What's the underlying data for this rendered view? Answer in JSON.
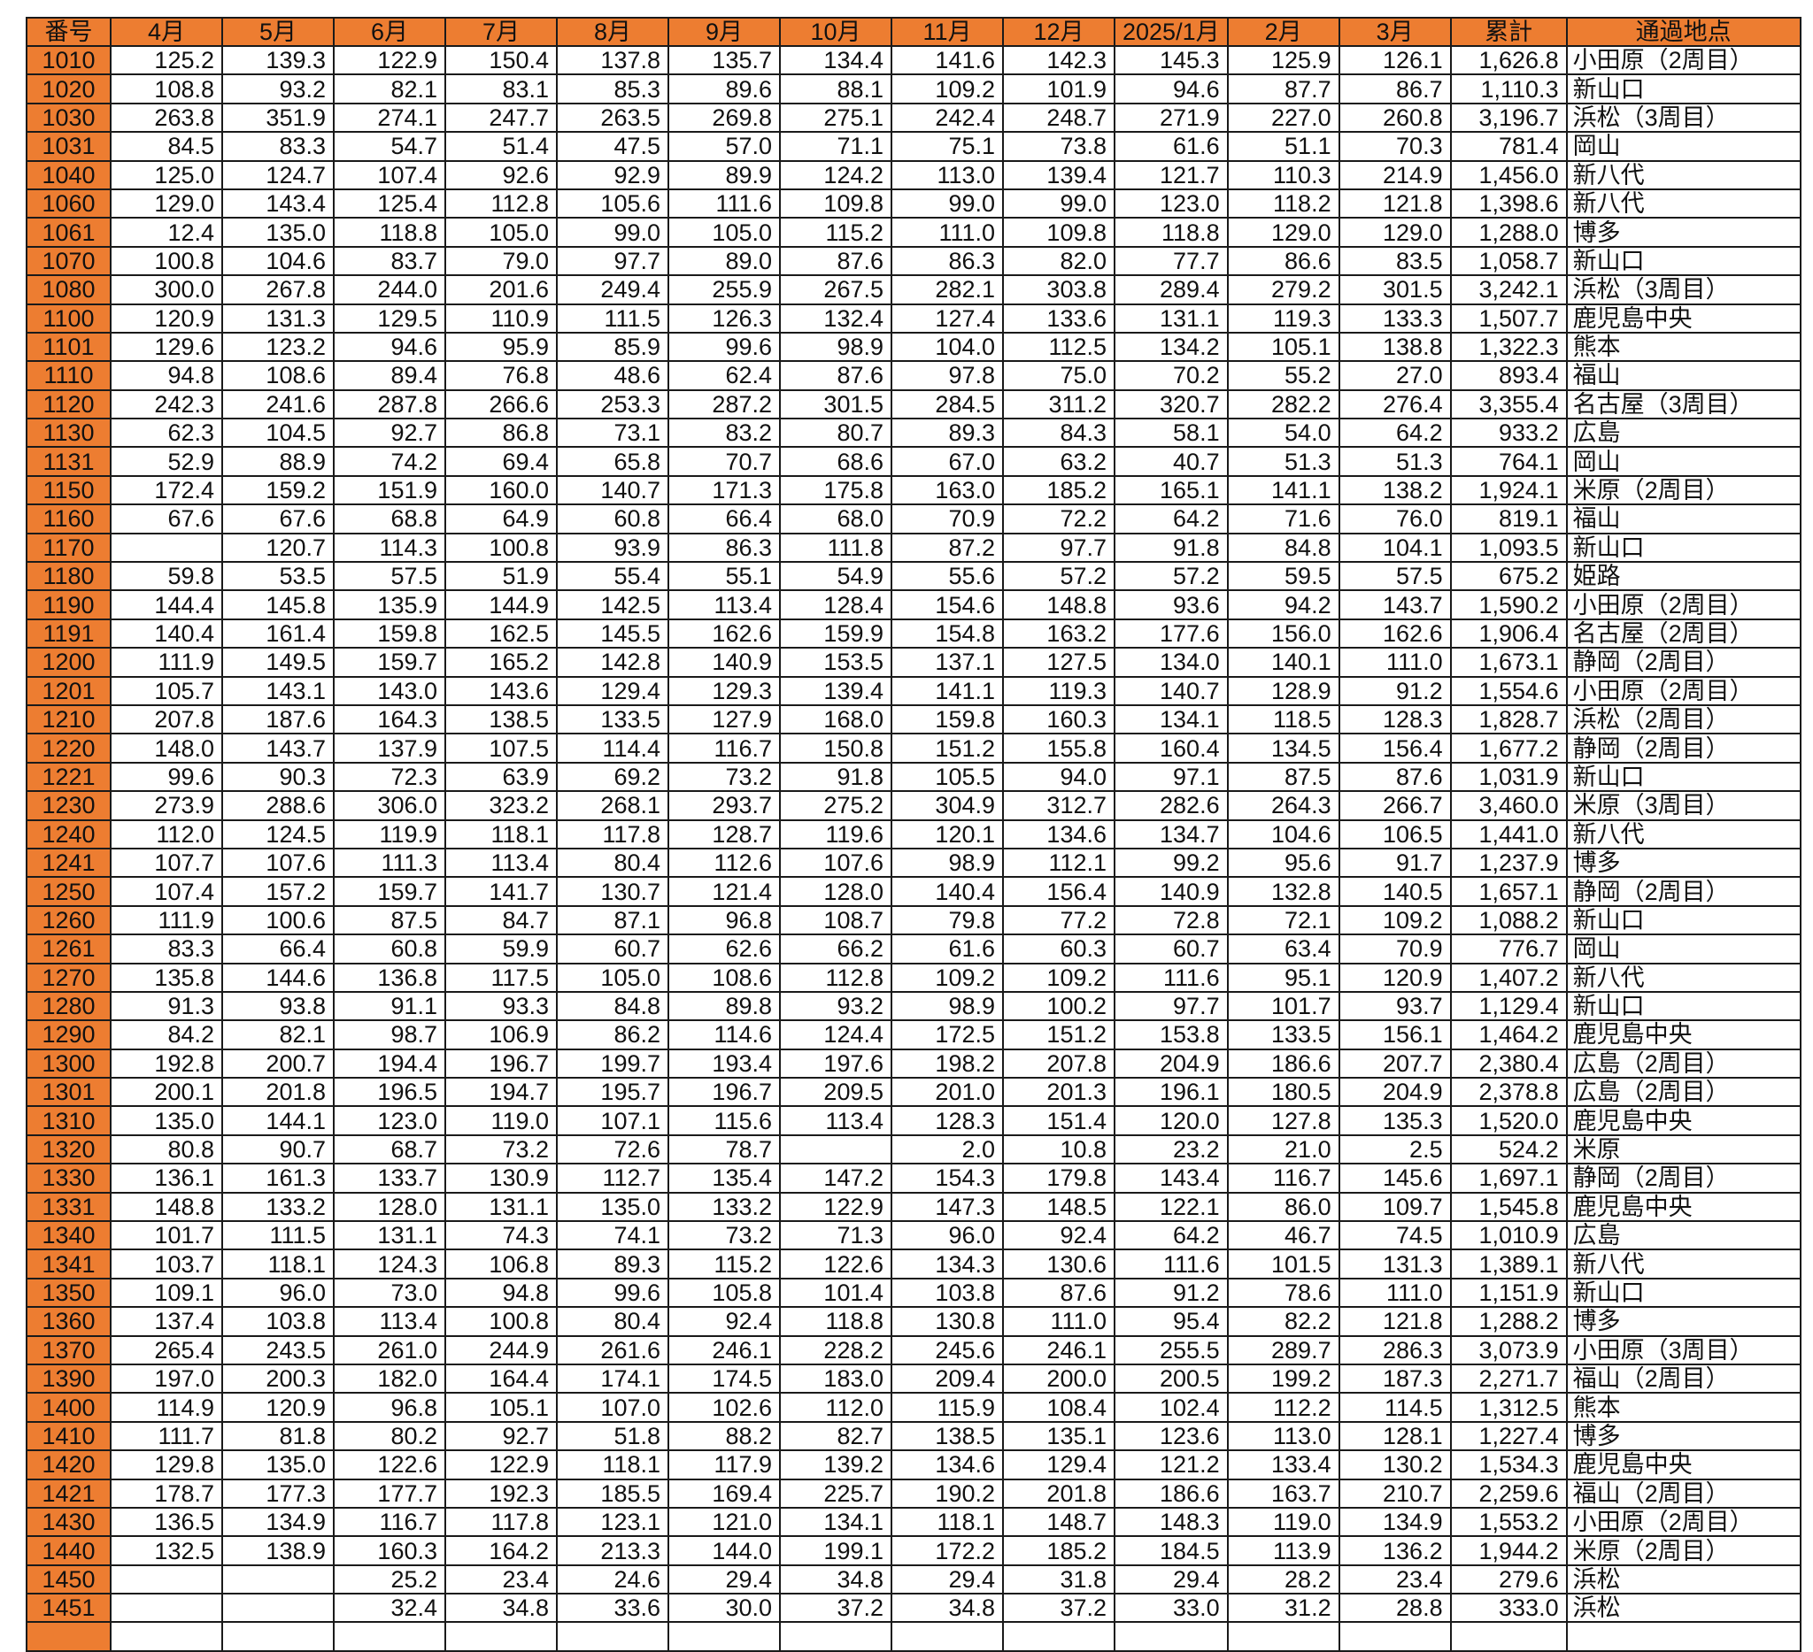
{
  "colors": {
    "header_bg": "#ED7D31",
    "id_bg": "#ED7D31",
    "border": "#1a1a1a"
  },
  "table": {
    "headers": [
      "番号",
      "4月",
      "5月",
      "6月",
      "7月",
      "8月",
      "9月",
      "10月",
      "11月",
      "12月",
      "2025/1月",
      "2月",
      "3月",
      "累計",
      "通過地点"
    ],
    "rows": [
      [
        "1010",
        "125.2",
        "139.3",
        "122.9",
        "150.4",
        "137.8",
        "135.7",
        "134.4",
        "141.6",
        "142.3",
        "145.3",
        "125.9",
        "126.1",
        "1,626.8",
        "小田原（2周目）"
      ],
      [
        "1020",
        "108.8",
        "93.2",
        "82.1",
        "83.1",
        "85.3",
        "89.6",
        "88.1",
        "109.2",
        "101.9",
        "94.6",
        "87.7",
        "86.7",
        "1,110.3",
        "新山口"
      ],
      [
        "1030",
        "263.8",
        "351.9",
        "274.1",
        "247.7",
        "263.5",
        "269.8",
        "275.1",
        "242.4",
        "248.7",
        "271.9",
        "227.0",
        "260.8",
        "3,196.7",
        "浜松（3周目）"
      ],
      [
        "1031",
        "84.5",
        "83.3",
        "54.7",
        "51.4",
        "47.5",
        "57.0",
        "71.1",
        "75.1",
        "73.8",
        "61.6",
        "51.1",
        "70.3",
        "781.4",
        "岡山"
      ],
      [
        "1040",
        "125.0",
        "124.7",
        "107.4",
        "92.6",
        "92.9",
        "89.9",
        "124.2",
        "113.0",
        "139.4",
        "121.7",
        "110.3",
        "214.9",
        "1,456.0",
        "新八代"
      ],
      [
        "1060",
        "129.0",
        "143.4",
        "125.4",
        "112.8",
        "105.6",
        "111.6",
        "109.8",
        "99.0",
        "99.0",
        "123.0",
        "118.2",
        "121.8",
        "1,398.6",
        "新八代"
      ],
      [
        "1061",
        "12.4",
        "135.0",
        "118.8",
        "105.0",
        "99.0",
        "105.0",
        "115.2",
        "111.0",
        "109.8",
        "118.8",
        "129.0",
        "129.0",
        "1,288.0",
        "博多"
      ],
      [
        "1070",
        "100.8",
        "104.6",
        "83.7",
        "79.0",
        "97.7",
        "89.0",
        "87.6",
        "86.3",
        "82.0",
        "77.7",
        "86.6",
        "83.5",
        "1,058.7",
        "新山口"
      ],
      [
        "1080",
        "300.0",
        "267.8",
        "244.0",
        "201.6",
        "249.4",
        "255.9",
        "267.5",
        "282.1",
        "303.8",
        "289.4",
        "279.2",
        "301.5",
        "3,242.1",
        "浜松（3周目）"
      ],
      [
        "1100",
        "120.9",
        "131.3",
        "129.5",
        "110.9",
        "111.5",
        "126.3",
        "132.4",
        "127.4",
        "133.6",
        "131.1",
        "119.3",
        "133.3",
        "1,507.7",
        "鹿児島中央"
      ],
      [
        "1101",
        "129.6",
        "123.2",
        "94.6",
        "95.9",
        "85.9",
        "99.6",
        "98.9",
        "104.0",
        "112.5",
        "134.2",
        "105.1",
        "138.8",
        "1,322.3",
        "熊本"
      ],
      [
        "1110",
        "94.8",
        "108.6",
        "89.4",
        "76.8",
        "48.6",
        "62.4",
        "87.6",
        "97.8",
        "75.0",
        "70.2",
        "55.2",
        "27.0",
        "893.4",
        "福山"
      ],
      [
        "1120",
        "242.3",
        "241.6",
        "287.8",
        "266.6",
        "253.3",
        "287.2",
        "301.5",
        "284.5",
        "311.2",
        "320.7",
        "282.2",
        "276.4",
        "3,355.4",
        "名古屋（3周目）"
      ],
      [
        "1130",
        "62.3",
        "104.5",
        "92.7",
        "86.8",
        "73.1",
        "83.2",
        "80.7",
        "89.3",
        "84.3",
        "58.1",
        "54.0",
        "64.2",
        "933.2",
        "広島"
      ],
      [
        "1131",
        "52.9",
        "88.9",
        "74.2",
        "69.4",
        "65.8",
        "70.7",
        "68.6",
        "67.0",
        "63.2",
        "40.7",
        "51.3",
        "51.3",
        "764.1",
        "岡山"
      ],
      [
        "1150",
        "172.4",
        "159.2",
        "151.9",
        "160.0",
        "140.7",
        "171.3",
        "175.8",
        "163.0",
        "185.2",
        "165.1",
        "141.1",
        "138.2",
        "1,924.1",
        "米原（2周目）"
      ],
      [
        "1160",
        "67.6",
        "67.6",
        "68.8",
        "64.9",
        "60.8",
        "66.4",
        "68.0",
        "70.9",
        "72.2",
        "64.2",
        "71.6",
        "76.0",
        "819.1",
        "福山"
      ],
      [
        "1170",
        "",
        "120.7",
        "114.3",
        "100.8",
        "93.9",
        "86.3",
        "111.8",
        "87.2",
        "97.7",
        "91.8",
        "84.8",
        "104.1",
        "1,093.5",
        "新山口"
      ],
      [
        "1180",
        "59.8",
        "53.5",
        "57.5",
        "51.9",
        "55.4",
        "55.1",
        "54.9",
        "55.6",
        "57.2",
        "57.2",
        "59.5",
        "57.5",
        "675.2",
        "姫路"
      ],
      [
        "1190",
        "144.4",
        "145.8",
        "135.9",
        "144.9",
        "142.5",
        "113.4",
        "128.4",
        "154.6",
        "148.8",
        "93.6",
        "94.2",
        "143.7",
        "1,590.2",
        "小田原（2周目）"
      ],
      [
        "1191",
        "140.4",
        "161.4",
        "159.8",
        "162.5",
        "145.5",
        "162.6",
        "159.9",
        "154.8",
        "163.2",
        "177.6",
        "156.0",
        "162.6",
        "1,906.4",
        "名古屋（2周目）"
      ],
      [
        "1200",
        "111.9",
        "149.5",
        "159.7",
        "165.2",
        "142.8",
        "140.9",
        "153.5",
        "137.1",
        "127.5",
        "134.0",
        "140.1",
        "111.0",
        "1,673.1",
        "静岡（2周目）"
      ],
      [
        "1201",
        "105.7",
        "143.1",
        "143.0",
        "143.6",
        "129.4",
        "129.3",
        "139.4",
        "141.1",
        "119.3",
        "140.7",
        "128.9",
        "91.2",
        "1,554.6",
        "小田原（2周目）"
      ],
      [
        "1210",
        "207.8",
        "187.6",
        "164.3",
        "138.5",
        "133.5",
        "127.9",
        "168.0",
        "159.8",
        "160.3",
        "134.1",
        "118.5",
        "128.3",
        "1,828.7",
        "浜松（2周目）"
      ],
      [
        "1220",
        "148.0",
        "143.7",
        "137.9",
        "107.5",
        "114.4",
        "116.7",
        "150.8",
        "151.2",
        "155.8",
        "160.4",
        "134.5",
        "156.4",
        "1,677.2",
        "静岡（2周目）"
      ],
      [
        "1221",
        "99.6",
        "90.3",
        "72.3",
        "63.9",
        "69.2",
        "73.2",
        "91.8",
        "105.5",
        "94.0",
        "97.1",
        "87.5",
        "87.6",
        "1,031.9",
        "新山口"
      ],
      [
        "1230",
        "273.9",
        "288.6",
        "306.0",
        "323.2",
        "268.1",
        "293.7",
        "275.2",
        "304.9",
        "312.7",
        "282.6",
        "264.3",
        "266.7",
        "3,460.0",
        "米原（3周目）"
      ],
      [
        "1240",
        "112.0",
        "124.5",
        "119.9",
        "118.1",
        "117.8",
        "128.7",
        "119.6",
        "120.1",
        "134.6",
        "134.7",
        "104.6",
        "106.5",
        "1,441.0",
        "新八代"
      ],
      [
        "1241",
        "107.7",
        "107.6",
        "111.3",
        "113.4",
        "80.4",
        "112.6",
        "107.6",
        "98.9",
        "112.1",
        "99.2",
        "95.6",
        "91.7",
        "1,237.9",
        "博多"
      ],
      [
        "1250",
        "107.4",
        "157.2",
        "159.7",
        "141.7",
        "130.7",
        "121.4",
        "128.0",
        "140.4",
        "156.4",
        "140.9",
        "132.8",
        "140.5",
        "1,657.1",
        "静岡（2周目）"
      ],
      [
        "1260",
        "111.9",
        "100.6",
        "87.5",
        "84.7",
        "87.1",
        "96.8",
        "108.7",
        "79.8",
        "77.2",
        "72.8",
        "72.1",
        "109.2",
        "1,088.2",
        "新山口"
      ],
      [
        "1261",
        "83.3",
        "66.4",
        "60.8",
        "59.9",
        "60.7",
        "62.6",
        "66.2",
        "61.6",
        "60.3",
        "60.7",
        "63.4",
        "70.9",
        "776.7",
        "岡山"
      ],
      [
        "1270",
        "135.8",
        "144.6",
        "136.8",
        "117.5",
        "105.0",
        "108.6",
        "112.8",
        "109.2",
        "109.2",
        "111.6",
        "95.1",
        "120.9",
        "1,407.2",
        "新八代"
      ],
      [
        "1280",
        "91.3",
        "93.8",
        "91.1",
        "93.3",
        "84.8",
        "89.8",
        "93.2",
        "98.9",
        "100.2",
        "97.7",
        "101.7",
        "93.7",
        "1,129.4",
        "新山口"
      ],
      [
        "1290",
        "84.2",
        "82.1",
        "98.7",
        "106.9",
        "86.2",
        "114.6",
        "124.4",
        "172.5",
        "151.2",
        "153.8",
        "133.5",
        "156.1",
        "1,464.2",
        "鹿児島中央"
      ],
      [
        "1300",
        "192.8",
        "200.7",
        "194.4",
        "196.7",
        "199.7",
        "193.4",
        "197.6",
        "198.2",
        "207.8",
        "204.9",
        "186.6",
        "207.7",
        "2,380.4",
        "広島（2周目）"
      ],
      [
        "1301",
        "200.1",
        "201.8",
        "196.5",
        "194.7",
        "195.7",
        "196.7",
        "209.5",
        "201.0",
        "201.3",
        "196.1",
        "180.5",
        "204.9",
        "2,378.8",
        "広島（2周目）"
      ],
      [
        "1310",
        "135.0",
        "144.1",
        "123.0",
        "119.0",
        "107.1",
        "115.6",
        "113.4",
        "128.3",
        "151.4",
        "120.0",
        "127.8",
        "135.3",
        "1,520.0",
        "鹿児島中央"
      ],
      [
        "1320",
        "80.8",
        "90.7",
        "68.7",
        "73.2",
        "72.6",
        "78.7",
        "",
        "2.0",
        "10.8",
        "23.2",
        "21.0",
        "2.5",
        "524.2",
        "米原"
      ],
      [
        "1330",
        "136.1",
        "161.3",
        "133.7",
        "130.9",
        "112.7",
        "135.4",
        "147.2",
        "154.3",
        "179.8",
        "143.4",
        "116.7",
        "145.6",
        "1,697.1",
        "静岡（2周目）"
      ],
      [
        "1331",
        "148.8",
        "133.2",
        "128.0",
        "131.1",
        "135.0",
        "133.2",
        "122.9",
        "147.3",
        "148.5",
        "122.1",
        "86.0",
        "109.7",
        "1,545.8",
        "鹿児島中央"
      ],
      [
        "1340",
        "101.7",
        "111.5",
        "131.1",
        "74.3",
        "74.1",
        "73.2",
        "71.3",
        "96.0",
        "92.4",
        "64.2",
        "46.7",
        "74.5",
        "1,010.9",
        "広島"
      ],
      [
        "1341",
        "103.7",
        "118.1",
        "124.3",
        "106.8",
        "89.3",
        "115.2",
        "122.6",
        "134.3",
        "130.6",
        "111.6",
        "101.5",
        "131.3",
        "1,389.1",
        "新八代"
      ],
      [
        "1350",
        "109.1",
        "96.0",
        "73.0",
        "94.8",
        "99.6",
        "105.8",
        "101.4",
        "103.8",
        "87.6",
        "91.2",
        "78.6",
        "111.0",
        "1,151.9",
        "新山口"
      ],
      [
        "1360",
        "137.4",
        "103.8",
        "113.4",
        "100.8",
        "80.4",
        "92.4",
        "118.8",
        "130.8",
        "111.0",
        "95.4",
        "82.2",
        "121.8",
        "1,288.2",
        "博多"
      ],
      [
        "1370",
        "265.4",
        "243.5",
        "261.0",
        "244.9",
        "261.6",
        "246.1",
        "228.2",
        "245.6",
        "246.1",
        "255.5",
        "289.7",
        "286.3",
        "3,073.9",
        "小田原（3周目）"
      ],
      [
        "1390",
        "197.0",
        "200.3",
        "182.0",
        "164.4",
        "174.1",
        "174.5",
        "183.0",
        "209.4",
        "200.0",
        "200.5",
        "199.2",
        "187.3",
        "2,271.7",
        "福山（2周目）"
      ],
      [
        "1400",
        "114.9",
        "120.9",
        "96.8",
        "105.1",
        "107.0",
        "102.6",
        "112.0",
        "115.9",
        "108.4",
        "102.4",
        "112.2",
        "114.5",
        "1,312.5",
        "熊本"
      ],
      [
        "1410",
        "111.7",
        "81.8",
        "80.2",
        "92.7",
        "51.8",
        "88.2",
        "82.7",
        "138.5",
        "135.1",
        "123.6",
        "113.0",
        "128.1",
        "1,227.4",
        "博多"
      ],
      [
        "1420",
        "129.8",
        "135.0",
        "122.6",
        "122.9",
        "118.1",
        "117.9",
        "139.2",
        "134.6",
        "129.4",
        "121.2",
        "133.4",
        "130.2",
        "1,534.3",
        "鹿児島中央"
      ],
      [
        "1421",
        "178.7",
        "177.3",
        "177.7",
        "192.3",
        "185.5",
        "169.4",
        "225.7",
        "190.2",
        "201.8",
        "186.6",
        "163.7",
        "210.7",
        "2,259.6",
        "福山（2周目）"
      ],
      [
        "1430",
        "136.5",
        "134.9",
        "116.7",
        "117.8",
        "123.1",
        "121.0",
        "134.1",
        "118.1",
        "148.7",
        "148.3",
        "119.0",
        "134.9",
        "1,553.2",
        "小田原（2周目）"
      ],
      [
        "1440",
        "132.5",
        "138.9",
        "160.3",
        "164.2",
        "213.3",
        "144.0",
        "199.1",
        "172.2",
        "185.2",
        "184.5",
        "113.9",
        "136.2",
        "1,944.2",
        "米原（2周目）"
      ],
      [
        "1450",
        "",
        "",
        "25.2",
        "23.4",
        "24.6",
        "29.4",
        "34.8",
        "29.4",
        "31.8",
        "29.4",
        "28.2",
        "23.4",
        "279.6",
        "浜松"
      ],
      [
        "1451",
        "",
        "",
        "32.4",
        "34.8",
        "33.6",
        "30.0",
        "37.2",
        "34.8",
        "37.2",
        "33.0",
        "31.2",
        "28.8",
        "333.0",
        "浜松"
      ],
      [
        "",
        "",
        "",
        "",
        "",
        "",
        "",
        "",
        "",
        "",
        "",
        "",
        "",
        "",
        ""
      ]
    ]
  }
}
